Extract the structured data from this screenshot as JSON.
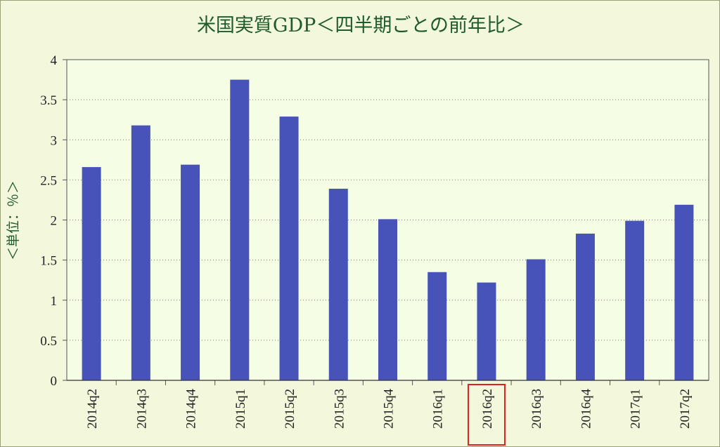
{
  "chart_data": {
    "type": "bar",
    "title": "米国実質GDP＜四半期ごとの前年比＞",
    "ylabel": "＜単位：％＞",
    "xlabel": "",
    "categories": [
      "2014q2",
      "2014q3",
      "2014q4",
      "2015q1",
      "2015q2",
      "2015q3",
      "2015q4",
      "2016q1",
      "2016q2",
      "2016q3",
      "2016q4",
      "2017q1",
      "2017q2"
    ],
    "values": [
      2.66,
      3.18,
      2.69,
      3.75,
      3.29,
      2.39,
      2.01,
      1.35,
      1.22,
      1.51,
      1.83,
      1.99,
      2.19
    ],
    "ylim": [
      0,
      4
    ],
    "yticks": [
      "0",
      "0.5",
      "1",
      "1.5",
      "2",
      "2.5",
      "3",
      "3.5",
      "4"
    ],
    "ytick_values": [
      0,
      0.5,
      1,
      1.5,
      2,
      2.5,
      3,
      3.5,
      4
    ],
    "grid": true,
    "highlighted_category": "2016q2",
    "colors": {
      "bar": "#4753b8",
      "plot_background": "#f5fde4",
      "chart_background": "#f3f8dc",
      "grid": "#6a8a6a",
      "title": "#1f5a2a",
      "highlight_box": "#e02020"
    }
  }
}
